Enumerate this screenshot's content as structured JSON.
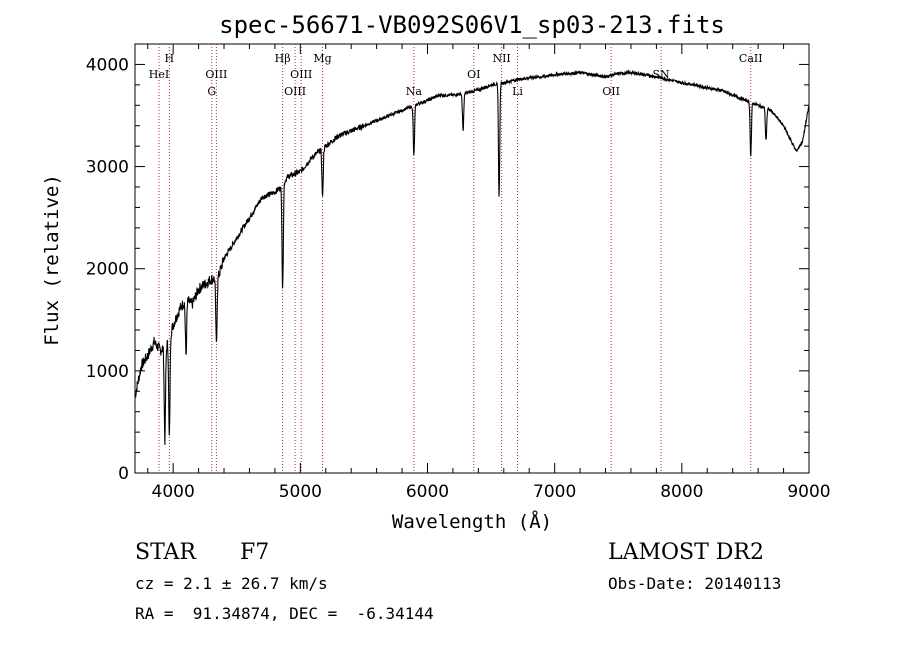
{
  "chart_data": {
    "type": "line",
    "title": "spec-56671-VB092S06V1_sp03-213.fits",
    "xlabel": "Wavelength (Å)",
    "ylabel": "Flux (relative)",
    "xlim": [
      3700,
      9000
    ],
    "ylim": [
      0,
      4200
    ],
    "x_ticks": [
      4000,
      5000,
      6000,
      7000,
      8000,
      9000
    ],
    "y_ticks": [
      0,
      1000,
      2000,
      3000,
      4000
    ],
    "grid": false,
    "series": [
      {
        "x": [
          3700,
          3750,
          3800,
          3850,
          3900,
          3950,
          4000,
          4050,
          4100,
          4150,
          4200,
          4250,
          4300,
          4350,
          4400,
          4500,
          4600,
          4700,
          4800,
          4850,
          4900,
          5000,
          5100,
          5200,
          5300,
          5400,
          5500,
          5600,
          5700,
          5800,
          5900,
          6000,
          6100,
          6200,
          6300,
          6400,
          6500,
          6600,
          6700,
          6800,
          6900,
          7000,
          7100,
          7200,
          7300,
          7400,
          7500,
          7600,
          7700,
          7800,
          7900,
          8000,
          8100,
          8200,
          8300,
          8400,
          8500,
          8600,
          8700,
          8800,
          8900,
          8950,
          9000
        ],
        "y": [
          750,
          1050,
          1150,
          1280,
          1200,
          1250,
          1450,
          1600,
          1700,
          1650,
          1800,
          1850,
          1900,
          1900,
          2100,
          2300,
          2500,
          2700,
          2750,
          2800,
          2900,
          2950,
          3100,
          3200,
          3300,
          3350,
          3400,
          3450,
          3500,
          3550,
          3600,
          3650,
          3700,
          3700,
          3720,
          3750,
          3800,
          3820,
          3850,
          3870,
          3880,
          3900,
          3910,
          3920,
          3900,
          3880,
          3910,
          3920,
          3900,
          3880,
          3850,
          3820,
          3800,
          3770,
          3750,
          3700,
          3650,
          3600,
          3550,
          3400,
          3150,
          3250,
          3600
        ]
      }
    ],
    "absorption_dips": [
      {
        "x": 3935,
        "y": 320
      },
      {
        "x": 3970,
        "y": 350
      },
      {
        "x": 4101,
        "y": 1150
      },
      {
        "x": 4340,
        "y": 1250
      },
      {
        "x": 4861,
        "y": 1800
      },
      {
        "x": 5175,
        "y": 2700
      },
      {
        "x": 5893,
        "y": 3100
      },
      {
        "x": 6280,
        "y": 3350
      },
      {
        "x": 6563,
        "y": 2700
      },
      {
        "x": 8542,
        "y": 3100
      },
      {
        "x": 8662,
        "y": 3250
      }
    ],
    "line_markers": [
      {
        "x": 3889,
        "label": "HeI",
        "level": 2
      },
      {
        "x": 3970,
        "label": "H",
        "level": 1
      },
      {
        "x": 4304,
        "label": "G",
        "level": 3
      },
      {
        "x": 4340,
        "label": "OIII",
        "level": 2
      },
      {
        "x": 4861,
        "label": "Hβ",
        "level": 1
      },
      {
        "x": 4959,
        "label": "OIII",
        "level": 3
      },
      {
        "x": 5007,
        "label": "OIII",
        "level": 2
      },
      {
        "x": 5175,
        "label": "Mg",
        "level": 1
      },
      {
        "x": 5893,
        "label": "Na",
        "level": 3
      },
      {
        "x": 6364,
        "label": "OI",
        "level": 2
      },
      {
        "x": 6583,
        "label": "NII",
        "level": 1
      },
      {
        "x": 6708,
        "label": "Li",
        "level": 3
      },
      {
        "x": 7444,
        "label": "OII",
        "level": 3
      },
      {
        "x": 7837,
        "label": "SN",
        "level": 2
      },
      {
        "x": 8542,
        "label": "CaII",
        "level": 1
      }
    ]
  },
  "info": {
    "class": "STAR",
    "subclass": "F7",
    "survey": "LAMOST DR2",
    "cz": "cz = 2.1 ± 26.7 km/s",
    "obs_date": "Obs-Date: 20140113",
    "coords": "RA =  91.34874, DEC =  -6.34144"
  }
}
